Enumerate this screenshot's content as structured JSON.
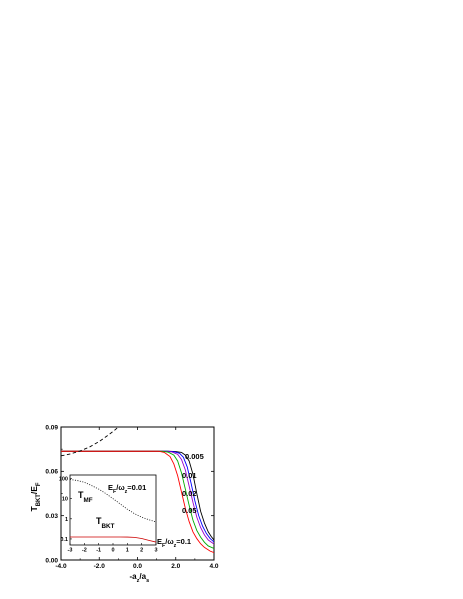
{
  "chart_data": [
    {
      "type": "line",
      "xlabel": "-a_z/a_s",
      "ylabel": "T_BKT/E_F",
      "xlim": [
        -4.0,
        4.0
      ],
      "ylim": [
        0.0,
        0.09
      ],
      "x_ticks": [
        "-4.0",
        "-2.0",
        "0.0",
        "2.0",
        "4.0"
      ],
      "y_ticks": [
        "0.00",
        "0.03",
        "0.06",
        "0.09"
      ],
      "grid": false,
      "series": [
        {
          "label": "0.005",
          "color": "#000000",
          "style": "solid",
          "points": [
            [
              -4.0,
              0.0736
            ],
            [
              0.8,
              0.0736
            ],
            [
              1.6,
              0.0736
            ],
            [
              2.0,
              0.0734
            ],
            [
              2.3,
              0.0728
            ],
            [
              2.5,
              0.071
            ],
            [
              2.7,
              0.067
            ],
            [
              2.9,
              0.058
            ],
            [
              3.1,
              0.045
            ],
            [
              3.3,
              0.033
            ],
            [
              3.5,
              0.025
            ],
            [
              3.7,
              0.019
            ],
            [
              3.85,
              0.016
            ],
            [
              4.0,
              0.0135
            ]
          ]
        },
        {
          "label": "0.01",
          "color": "#0000ff",
          "style": "solid",
          "points": [
            [
              -4.0,
              0.0736
            ],
            [
              0.8,
              0.0736
            ],
            [
              1.5,
              0.0736
            ],
            [
              1.9,
              0.0733
            ],
            [
              2.2,
              0.0722
            ],
            [
              2.4,
              0.0695
            ],
            [
              2.6,
              0.063
            ],
            [
              2.8,
              0.052
            ],
            [
              3.0,
              0.04
            ],
            [
              3.2,
              0.03
            ],
            [
              3.4,
              0.023
            ],
            [
              3.6,
              0.018
            ],
            [
              3.8,
              0.0145
            ],
            [
              4.0,
              0.0122
            ]
          ]
        },
        {
          "label": "0.02",
          "color": "#9900cc",
          "style": "solid",
          "points": [
            [
              -4.0,
              0.0736
            ],
            [
              0.8,
              0.0736
            ],
            [
              1.4,
              0.0736
            ],
            [
              1.8,
              0.0731
            ],
            [
              2.1,
              0.0715
            ],
            [
              2.3,
              0.068
            ],
            [
              2.5,
              0.061
            ],
            [
              2.7,
              0.05
            ],
            [
              2.9,
              0.039
            ],
            [
              3.1,
              0.029
            ],
            [
              3.3,
              0.022
            ],
            [
              3.5,
              0.017
            ],
            [
              3.7,
              0.0135
            ],
            [
              4.0,
              0.0108
            ]
          ]
        },
        {
          "label": "0.05",
          "color": "#00aa00",
          "style": "solid",
          "points": [
            [
              -4.0,
              0.0736
            ],
            [
              0.8,
              0.0736
            ],
            [
              1.3,
              0.0736
            ],
            [
              1.6,
              0.073
            ],
            [
              1.9,
              0.071
            ],
            [
              2.1,
              0.067
            ],
            [
              2.3,
              0.059
            ],
            [
              2.5,
              0.048
            ],
            [
              2.7,
              0.037
            ],
            [
              2.9,
              0.027
            ],
            [
              3.1,
              0.02
            ],
            [
              3.3,
              0.0155
            ],
            [
              3.5,
              0.012
            ],
            [
              3.7,
              0.0095
            ],
            [
              4.0,
              0.0078
            ]
          ]
        },
        {
          "label": "E_F/ω_z=0.1",
          "color": "#ff0000",
          "style": "solid",
          "points": [
            [
              -4.0,
              0.0736
            ],
            [
              0.8,
              0.0736
            ],
            [
              1.1,
              0.0736
            ],
            [
              1.4,
              0.0728
            ],
            [
              1.7,
              0.07
            ],
            [
              1.9,
              0.065
            ],
            [
              2.1,
              0.057
            ],
            [
              2.3,
              0.046
            ],
            [
              2.5,
              0.035
            ],
            [
              2.7,
              0.026
            ],
            [
              2.9,
              0.019
            ],
            [
              3.1,
              0.0145
            ],
            [
              3.3,
              0.011
            ],
            [
              3.5,
              0.0085
            ],
            [
              3.8,
              0.006
            ],
            [
              4.0,
              0.005
            ]
          ]
        },
        {
          "label": "",
          "color": "#000000",
          "style": "dashed",
          "points": [
            [
              -4.0,
              0.0705
            ],
            [
              -3.5,
              0.0718
            ],
            [
              -3.0,
              0.0738
            ],
            [
              -2.5,
              0.0765
            ],
            [
              -2.0,
              0.0802
            ],
            [
              -1.5,
              0.0848
            ],
            [
              -1.2,
              0.0878
            ],
            [
              -1.0,
              0.09
            ]
          ]
        }
      ],
      "annotations": [
        "0.005",
        "0.01",
        "0.02",
        "0.05",
        "E_F/ω_z=0.1"
      ]
    },
    {
      "type": "line",
      "xlim": [
        -3,
        3
      ],
      "ylim_log": [
        0.05,
        150
      ],
      "x_ticks": [
        "-3",
        "-2",
        "-1",
        "0",
        "1",
        "2",
        "3"
      ],
      "y_ticks": [
        "0.1",
        "1",
        "10",
        "100"
      ],
      "series": [
        {
          "label": "T_MF",
          "color": "#000000",
          "style": "dotted",
          "points": [
            [
              -3.0,
              90
            ],
            [
              -2.5,
              80
            ],
            [
              -2.0,
              65
            ],
            [
              -1.5,
              45
            ],
            [
              -1.0,
              30
            ],
            [
              -0.5,
              18
            ],
            [
              0.0,
              10
            ],
            [
              0.5,
              5.5
            ],
            [
              1.0,
              3.0
            ],
            [
              1.5,
              1.8
            ],
            [
              2.0,
              1.2
            ],
            [
              2.5,
              0.9
            ],
            [
              3.0,
              0.7
            ]
          ]
        },
        {
          "label": "T_BKT",
          "color": "#cc0000",
          "style": "solid",
          "points": [
            [
              -3.0,
              0.125
            ],
            [
              0.5,
              0.125
            ],
            [
              1.0,
              0.124
            ],
            [
              1.5,
              0.12
            ],
            [
              2.0,
              0.105
            ],
            [
              2.5,
              0.085
            ],
            [
              3.0,
              0.07
            ]
          ]
        }
      ],
      "labels": {
        "tmf": "T_MF",
        "tbkt": "T_BKT",
        "param": "E_F/ω_z=0.01"
      }
    }
  ]
}
